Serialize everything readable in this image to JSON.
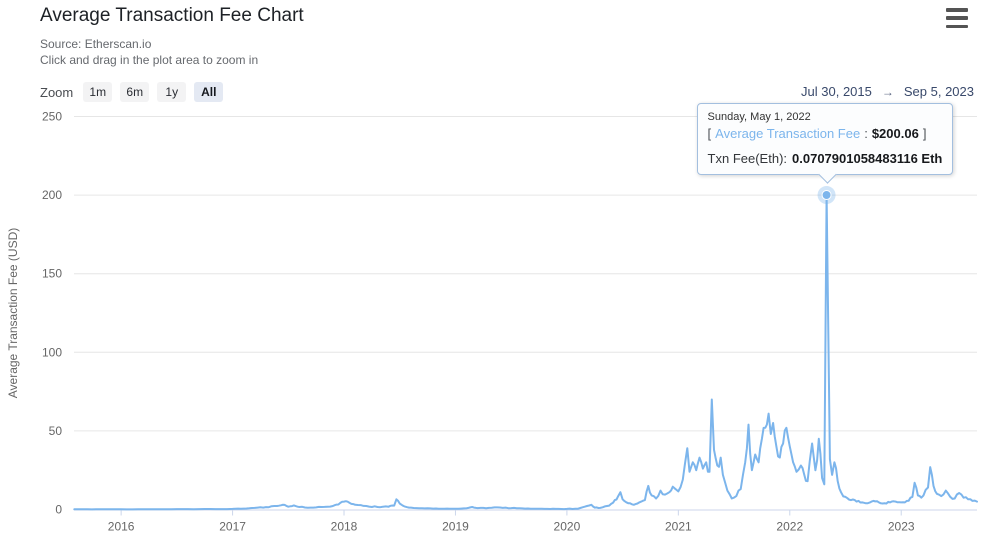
{
  "header": {
    "title": "Average Transaction Fee Chart",
    "source": "Source: Etherscan.io",
    "hint": "Click and drag in the plot area to zoom in",
    "menu_icon": "hamburger-icon"
  },
  "toolbar": {
    "zoom_label": "Zoom",
    "buttons": [
      {
        "label": "1m",
        "selected": false
      },
      {
        "label": "6m",
        "selected": false
      },
      {
        "label": "1y",
        "selected": false
      },
      {
        "label": "All",
        "selected": true
      }
    ],
    "range": {
      "from": "Jul 30, 2015",
      "arrow": "→",
      "to": "Sep 5, 2023"
    }
  },
  "tooltip": {
    "date": "Sunday, May 1, 2022",
    "bracket_open": "[",
    "series_label": "Average Transaction Fee",
    "separator": ":",
    "value": "$200.06",
    "bracket_close": "]",
    "txn_label": "Txn Fee(Eth):",
    "txn_value": "0.0707901058483116 Eth"
  },
  "colors": {
    "line": "#7cb5ec",
    "grid": "#e6e6e6",
    "axis_line": "#ccd6eb",
    "tick_text": "#666666",
    "range_text": "#39496b",
    "marker_halo": "rgba(124,181,236,0.35)"
  },
  "chart_data": {
    "type": "line",
    "title": "Average Transaction Fee Chart",
    "xlabel": "",
    "ylabel": "Average Transaction Fee (USD)",
    "x_unit": "year (decimal)",
    "xlim": [
      2015.577,
      2023.68
    ],
    "ylim": [
      0,
      250
    ],
    "y_ticks": [
      0,
      50,
      100,
      150,
      200,
      250
    ],
    "x_ticks": [
      2016,
      2017,
      2018,
      2019,
      2020,
      2021,
      2022,
      2023
    ],
    "grid": "horizontal-only",
    "legend": "none",
    "series": [
      {
        "name": "Average Transaction Fee",
        "color": "#7cb5ec",
        "points": [
          [
            2015.58,
            0.15
          ],
          [
            2015.7,
            0.1
          ],
          [
            2015.85,
            0.1
          ],
          [
            2016.0,
            0.15
          ],
          [
            2016.2,
            0.1
          ],
          [
            2016.4,
            0.15
          ],
          [
            2016.6,
            0.25
          ],
          [
            2016.8,
            0.3
          ],
          [
            2017.0,
            0.35
          ],
          [
            2017.1,
            0.6
          ],
          [
            2017.2,
            1.0
          ],
          [
            2017.3,
            1.5
          ],
          [
            2017.4,
            2.2
          ],
          [
            2017.45,
            3.0
          ],
          [
            2017.5,
            1.8
          ],
          [
            2017.55,
            2.6
          ],
          [
            2017.6,
            1.6
          ],
          [
            2017.7,
            1.2
          ],
          [
            2017.8,
            1.6
          ],
          [
            2017.9,
            2.2
          ],
          [
            2017.95,
            3.2
          ],
          [
            2018.0,
            5.0
          ],
          [
            2018.05,
            4.2
          ],
          [
            2018.1,
            3.0
          ],
          [
            2018.2,
            2.2
          ],
          [
            2018.3,
            1.6
          ],
          [
            2018.4,
            1.8
          ],
          [
            2018.45,
            2.5
          ],
          [
            2018.47,
            6.5
          ],
          [
            2018.5,
            3.8
          ],
          [
            2018.55,
            1.8
          ],
          [
            2018.6,
            1.2
          ],
          [
            2018.7,
            0.8
          ],
          [
            2018.8,
            0.6
          ],
          [
            2018.9,
            0.5
          ],
          [
            2019.0,
            0.5
          ],
          [
            2019.1,
            0.8
          ],
          [
            2019.15,
            1.6
          ],
          [
            2019.2,
            0.9
          ],
          [
            2019.3,
            1.0
          ],
          [
            2019.4,
            1.3
          ],
          [
            2019.5,
            0.9
          ],
          [
            2019.6,
            0.7
          ],
          [
            2019.7,
            0.5
          ],
          [
            2019.8,
            0.4
          ],
          [
            2019.9,
            0.35
          ],
          [
            2020.0,
            0.4
          ],
          [
            2020.1,
            0.5
          ],
          [
            2020.18,
            2.2
          ],
          [
            2020.22,
            3.0
          ],
          [
            2020.25,
            1.2
          ],
          [
            2020.3,
            1.0
          ],
          [
            2020.38,
            2.5
          ],
          [
            2020.43,
            6.0
          ],
          [
            2020.46,
            8.5
          ],
          [
            2020.48,
            11.0
          ],
          [
            2020.5,
            6.5
          ],
          [
            2020.55,
            4.0
          ],
          [
            2020.6,
            3.0
          ],
          [
            2020.65,
            4.5
          ],
          [
            2020.7,
            6.0
          ],
          [
            2020.73,
            15.0
          ],
          [
            2020.76,
            9.0
          ],
          [
            2020.8,
            7.0
          ],
          [
            2020.84,
            12.0
          ],
          [
            2020.88,
            9.5
          ],
          [
            2020.92,
            11.0
          ],
          [
            2020.95,
            14.5
          ],
          [
            2021.0,
            11.5
          ],
          [
            2021.04,
            19.0
          ],
          [
            2021.08,
            39.0
          ],
          [
            2021.1,
            24.0
          ],
          [
            2021.13,
            30.0
          ],
          [
            2021.16,
            25.0
          ],
          [
            2021.19,
            33.0
          ],
          [
            2021.22,
            26.0
          ],
          [
            2021.25,
            30.0
          ],
          [
            2021.28,
            24.0
          ],
          [
            2021.3,
            70.0
          ],
          [
            2021.32,
            38.0
          ],
          [
            2021.35,
            28.0
          ],
          [
            2021.38,
            33.0
          ],
          [
            2021.4,
            22.0
          ],
          [
            2021.44,
            12.0
          ],
          [
            2021.48,
            7.0
          ],
          [
            2021.52,
            8.5
          ],
          [
            2021.56,
            13.0
          ],
          [
            2021.6,
            30.0
          ],
          [
            2021.63,
            54.0
          ],
          [
            2021.66,
            25.0
          ],
          [
            2021.69,
            35.0
          ],
          [
            2021.72,
            30.0
          ],
          [
            2021.75,
            45.0
          ],
          [
            2021.78,
            52.0
          ],
          [
            2021.81,
            61.0
          ],
          [
            2021.83,
            48.0
          ],
          [
            2021.85,
            55.0
          ],
          [
            2021.88,
            40.0
          ],
          [
            2021.91,
            33.0
          ],
          [
            2021.94,
            42.0
          ],
          [
            2021.97,
            52.0
          ],
          [
            2022.0,
            40.0
          ],
          [
            2022.03,
            30.0
          ],
          [
            2022.06,
            24.0
          ],
          [
            2022.1,
            28.0
          ],
          [
            2022.13,
            22.0
          ],
          [
            2022.16,
            18.0
          ],
          [
            2022.2,
            42.0
          ],
          [
            2022.23,
            25.0
          ],
          [
            2022.26,
            45.0
          ],
          [
            2022.29,
            20.0
          ],
          [
            2022.31,
            16.0
          ],
          [
            2022.33,
            200.06
          ],
          [
            2022.36,
            32.0
          ],
          [
            2022.38,
            22.0
          ],
          [
            2022.4,
            30.0
          ],
          [
            2022.43,
            18.0
          ],
          [
            2022.46,
            11.0
          ],
          [
            2022.5,
            8.0
          ],
          [
            2022.55,
            6.0
          ],
          [
            2022.6,
            5.0
          ],
          [
            2022.65,
            4.5
          ],
          [
            2022.7,
            4.0
          ],
          [
            2022.75,
            5.5
          ],
          [
            2022.8,
            4.5
          ],
          [
            2022.85,
            4.0
          ],
          [
            2022.9,
            4.5
          ],
          [
            2022.95,
            5.0
          ],
          [
            2023.0,
            4.5
          ],
          [
            2023.05,
            5.5
          ],
          [
            2023.1,
            8.0
          ],
          [
            2023.12,
            17.0
          ],
          [
            2023.15,
            9.0
          ],
          [
            2023.18,
            7.5
          ],
          [
            2023.2,
            9.0
          ],
          [
            2023.24,
            14.0
          ],
          [
            2023.26,
            27.0
          ],
          [
            2023.29,
            15.0
          ],
          [
            2023.32,
            10.0
          ],
          [
            2023.36,
            8.5
          ],
          [
            2023.4,
            12.0
          ],
          [
            2023.44,
            8.0
          ],
          [
            2023.48,
            7.0
          ],
          [
            2023.52,
            10.5
          ],
          [
            2023.56,
            7.5
          ],
          [
            2023.6,
            6.5
          ],
          [
            2023.64,
            5.5
          ],
          [
            2023.68,
            5.0
          ]
        ]
      }
    ],
    "highlight_point": {
      "x": 2022.33,
      "y": 200.06,
      "date": "Sunday, May 1, 2022",
      "value_usd": "$200.06",
      "txn_fee_eth": "0.0707901058483116 Eth"
    }
  }
}
